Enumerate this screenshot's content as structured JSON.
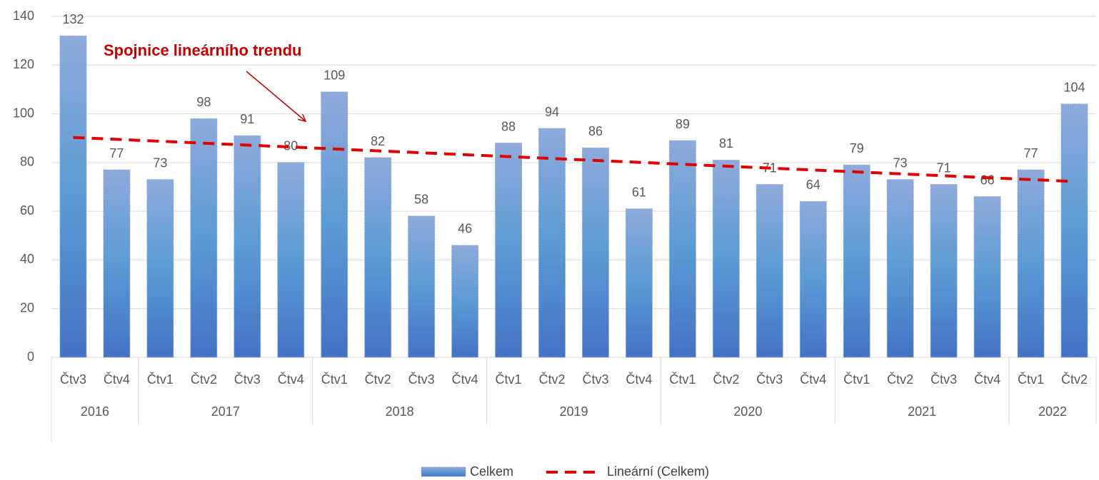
{
  "chart_data": {
    "type": "bar",
    "categories": [
      "Čtv3",
      "Čtv4",
      "Čtv1",
      "Čtv2",
      "Čtv3",
      "Čtv4",
      "Čtv1",
      "Čtv2",
      "Čtv3",
      "Čtv4",
      "Čtv1",
      "Čtv2",
      "Čtv3",
      "Čtv4",
      "Čtv1",
      "Čtv2",
      "Čtv3",
      "Čtv4",
      "Čtv1",
      "Čtv2",
      "Čtv3",
      "Čtv4",
      "Čtv1",
      "Čtv2"
    ],
    "groups": [
      {
        "name": "2016",
        "count": 2
      },
      {
        "name": "2017",
        "count": 4
      },
      {
        "name": "2018",
        "count": 4
      },
      {
        "name": "2019",
        "count": 4
      },
      {
        "name": "2020",
        "count": 4
      },
      {
        "name": "2021",
        "count": 4
      },
      {
        "name": "2022",
        "count": 2
      }
    ],
    "series": [
      {
        "name": "Celkem",
        "color": "#5b9bd5",
        "values": [
          132,
          77,
          73,
          98,
          91,
          80,
          109,
          82,
          58,
          46,
          88,
          94,
          86,
          61,
          89,
          81,
          71,
          64,
          79,
          73,
          71,
          66,
          77,
          104
        ]
      }
    ],
    "trend": {
      "name": "Lineární (Celkem)",
      "color": "#e00000",
      "values": [
        90.3,
        72.2
      ]
    },
    "annotation": "Spojnice lineárního trendu",
    "ylim": [
      0,
      140
    ],
    "yticks": [
      0,
      20,
      40,
      60,
      80,
      100,
      120,
      140
    ],
    "grid": true
  }
}
